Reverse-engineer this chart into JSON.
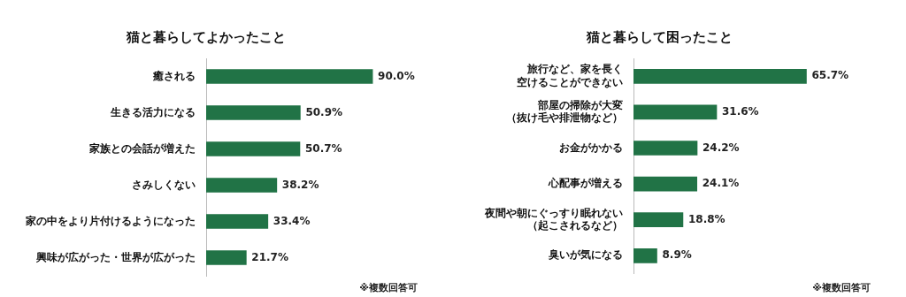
{
  "chart_data": [
    {
      "type": "bar",
      "orientation": "horizontal",
      "title": "猫と暮らしてよかったこと",
      "categories": [
        "癒される",
        "生きる活力になる",
        "家族との会話が増えた",
        "さみしくない",
        "家の中をより片付けるようになった",
        "興味が広がった・世界が広がった"
      ],
      "values": [
        90.0,
        50.9,
        50.7,
        38.2,
        33.4,
        21.7
      ],
      "color": "#217346",
      "value_labels": [
        "90.0%",
        "50.9%",
        "50.7%",
        "38.2%",
        "33.4%",
        "21.7%"
      ],
      "tick_labels": "y",
      "annotations": [
        "※複数回答可"
      ]
    },
    {
      "type": "bar",
      "orientation": "horizontal",
      "title": "猫と暮らして困ったこと",
      "categories": [
        "旅行など、家を長く空けることができない",
        "部屋の掃除が大変（抜け毛や排泄物など）",
        "お金がかかる",
        "心配事が増える",
        "夜間や朝にぐっすり眠れない（起こされるなど）",
        "臭いが気になる"
      ],
      "values": [
        65.7,
        31.6,
        24.2,
        24.1,
        18.8,
        8.9
      ],
      "color": "#217346",
      "value_labels": [
        "65.7%",
        "31.6%",
        "24.2%",
        "24.1%",
        "18.8%",
        "8.9%"
      ],
      "tick_labels": "y",
      "annotations": [
        "※複数回答可"
      ]
    }
  ]
}
